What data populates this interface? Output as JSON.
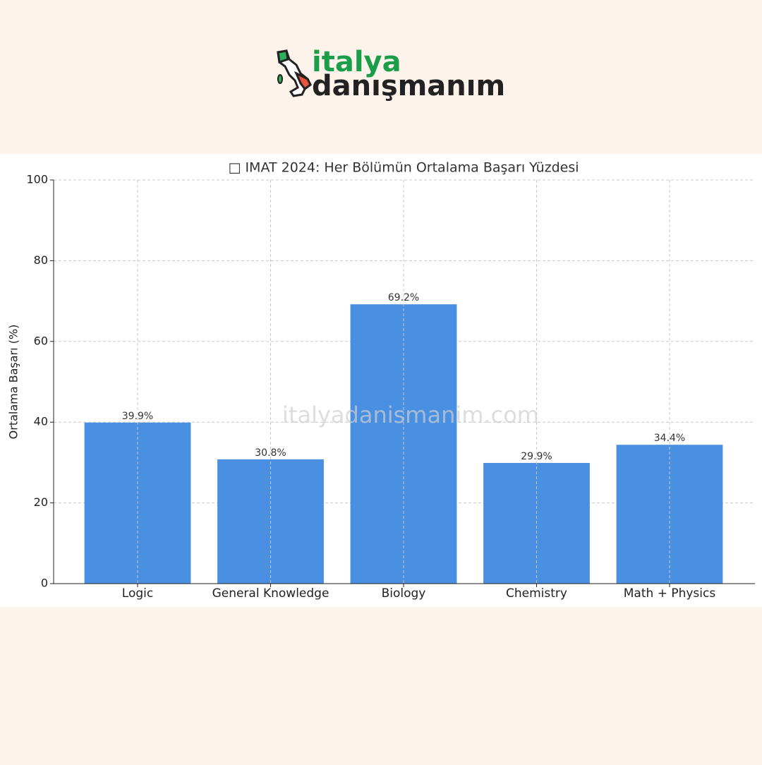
{
  "logo": {
    "line1": "italya",
    "line2": "danışmanım"
  },
  "watermark": "italyadanismanim.com",
  "chart_data": {
    "type": "bar",
    "title": "□ IMAT 2024: Her Bölümün Ortalama Başarı Yüzdesi",
    "y_label": "Ortalama Başarı (%)",
    "categories": [
      "Logic",
      "General Knowledge",
      "Biology",
      "Chemistry",
      "Math + Physics"
    ],
    "values": [
      39.9,
      30.8,
      69.2,
      29.9,
      34.4
    ],
    "value_labels": [
      "39.9%",
      "30.8%",
      "69.2%",
      "29.9%",
      "34.4%"
    ],
    "color": "#4a90e2",
    "ylim": [
      0,
      100
    ],
    "yticks": [
      0,
      20,
      40,
      60,
      80,
      100
    ],
    "grid": true
  }
}
